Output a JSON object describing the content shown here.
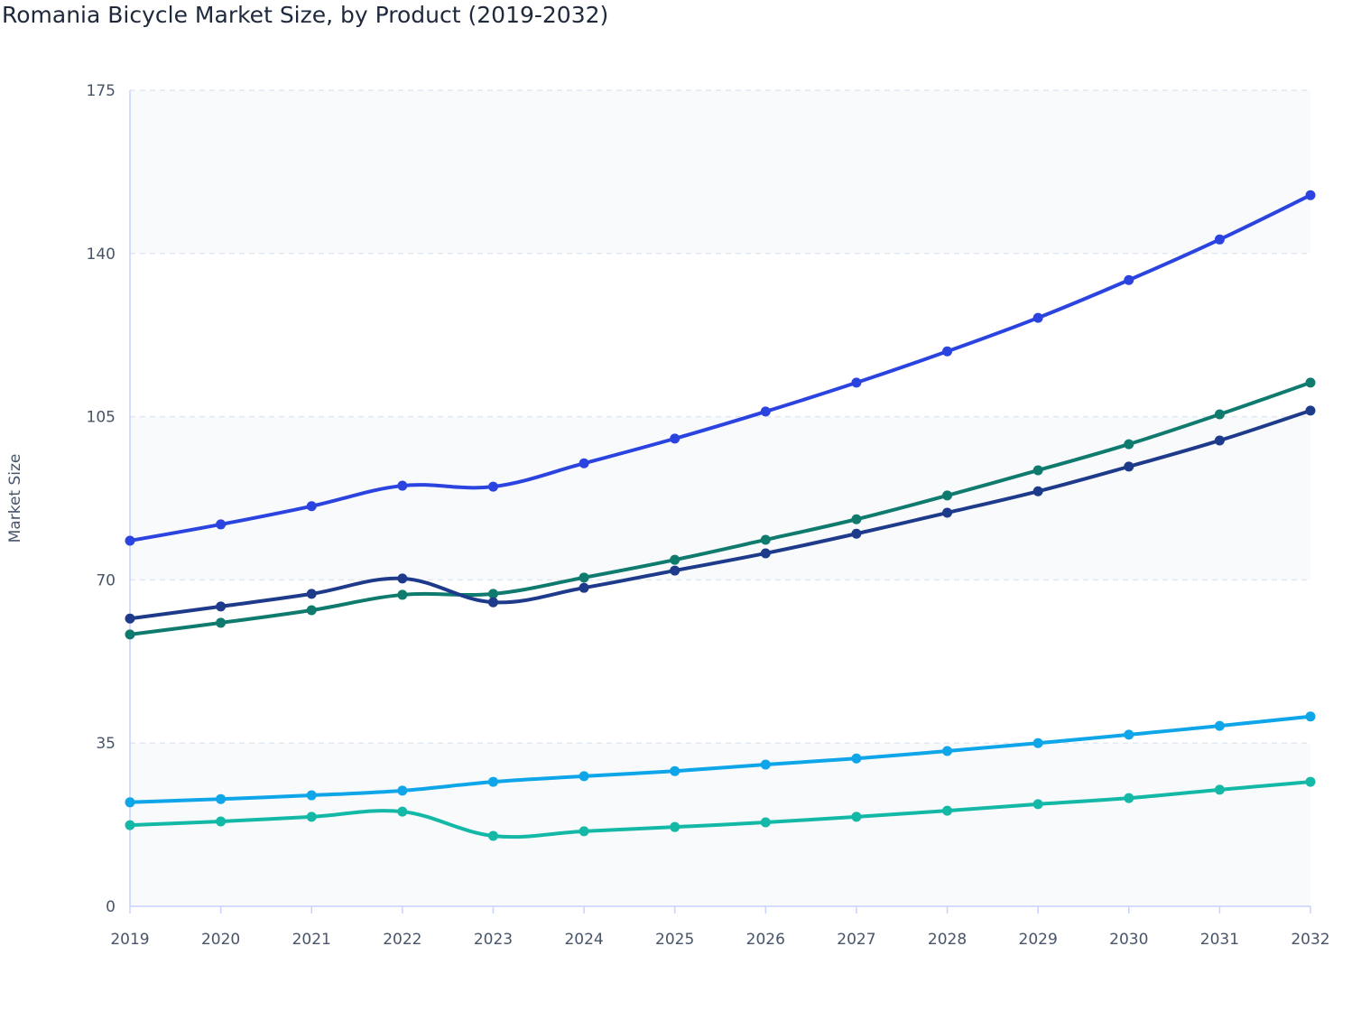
{
  "chart_data": {
    "type": "line",
    "title": "Romania Bicycle Market Size, by Product (2019-2032)",
    "xlabel": "",
    "ylabel": "Market Size",
    "ylim": [
      0,
      175
    ],
    "yticks": [
      0,
      35,
      70,
      105,
      140,
      175
    ],
    "x": [
      "2019",
      "2020",
      "2021",
      "2022",
      "2023",
      "2024",
      "2025",
      "2026",
      "2027",
      "2028",
      "2029",
      "2030",
      "2031",
      "2032"
    ],
    "grid": true,
    "legend": "none",
    "series": [
      {
        "color": "#2b44e0",
        "values": [
          78.4,
          81.9,
          85.8,
          90.2,
          90.0,
          95.0,
          100.3,
          106.1,
          112.3,
          119.0,
          126.2,
          134.3,
          143.0,
          152.5
        ]
      },
      {
        "color": "#0f7a6e",
        "values": [
          58.3,
          60.8,
          63.5,
          66.8,
          67.0,
          70.5,
          74.3,
          78.6,
          83.0,
          88.1,
          93.5,
          99.1,
          105.5,
          112.3
        ]
      },
      {
        "color": "#1e3a8a",
        "values": [
          61.7,
          64.3,
          67.0,
          70.3,
          65.2,
          68.3,
          72.0,
          75.7,
          79.9,
          84.4,
          89.0,
          94.3,
          99.9,
          106.3
        ]
      },
      {
        "color": "#0ea5e9",
        "values": [
          22.3,
          23.0,
          23.8,
          24.8,
          26.7,
          27.9,
          29.0,
          30.4,
          31.7,
          33.3,
          35.0,
          36.8,
          38.7,
          40.7
        ]
      },
      {
        "color": "#14b8a6",
        "values": [
          17.4,
          18.2,
          19.2,
          20.3,
          15.1,
          16.1,
          17.0,
          18.0,
          19.2,
          20.5,
          21.9,
          23.2,
          25.0,
          26.7
        ]
      }
    ]
  }
}
